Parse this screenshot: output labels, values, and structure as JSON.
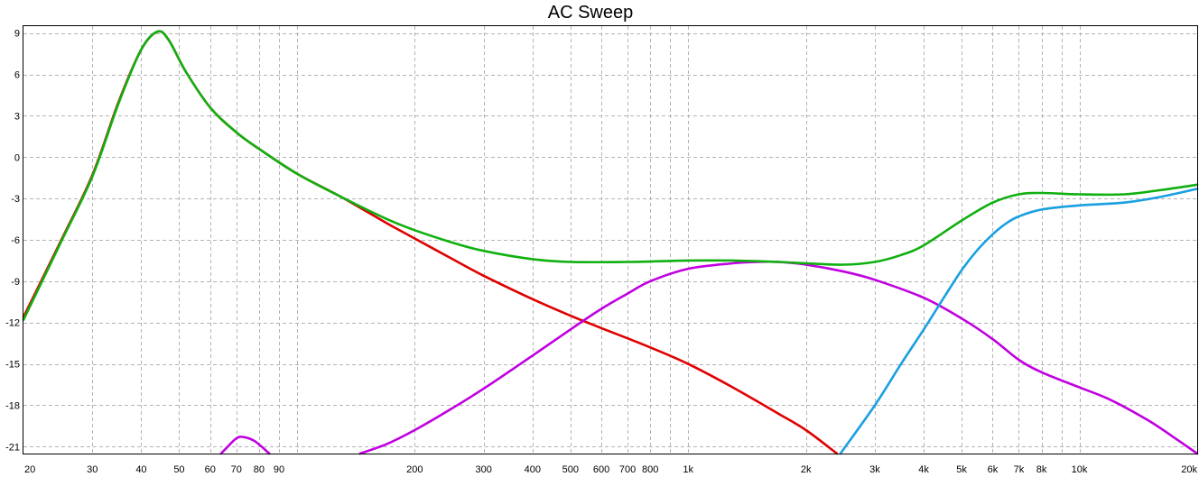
{
  "chart_data": {
    "type": "line",
    "title": "AC Sweep",
    "xlabel": "",
    "ylabel": "",
    "x_scale": "log",
    "xlim": [
      20,
      20000
    ],
    "ylim": [
      -21.5,
      9.5
    ],
    "grid": true,
    "legend": "none",
    "x_ticks": [
      {
        "value": 20,
        "label": "20"
      },
      {
        "value": 30,
        "label": "30"
      },
      {
        "value": 40,
        "label": "40"
      },
      {
        "value": 50,
        "label": "50"
      },
      {
        "value": 60,
        "label": "60"
      },
      {
        "value": 70,
        "label": "70"
      },
      {
        "value": 80,
        "label": "80"
      },
      {
        "value": 90,
        "label": "90"
      },
      {
        "value": 200,
        "label": "200"
      },
      {
        "value": 300,
        "label": "300"
      },
      {
        "value": 400,
        "label": "400"
      },
      {
        "value": 500,
        "label": "500"
      },
      {
        "value": 600,
        "label": "600"
      },
      {
        "value": 700,
        "label": "700"
      },
      {
        "value": 800,
        "label": "800"
      },
      {
        "value": 1000,
        "label": "1k"
      },
      {
        "value": 2000,
        "label": "2k"
      },
      {
        "value": 3000,
        "label": "3k"
      },
      {
        "value": 4000,
        "label": "4k"
      },
      {
        "value": 5000,
        "label": "5k"
      },
      {
        "value": 6000,
        "label": "6k"
      },
      {
        "value": 7000,
        "label": "7k"
      },
      {
        "value": 8000,
        "label": "8k"
      },
      {
        "value": 10000,
        "label": "10k"
      },
      {
        "value": 20000,
        "label": "20k"
      }
    ],
    "x_minor_grid": [
      100,
      900,
      9000
    ],
    "y_ticks": [
      {
        "value": 9,
        "label": "9"
      },
      {
        "value": 6,
        "label": "6"
      },
      {
        "value": 3,
        "label": "3"
      },
      {
        "value": 0,
        "label": "0"
      },
      {
        "value": -3,
        "label": "-3"
      },
      {
        "value": -6,
        "label": "-6"
      },
      {
        "value": -9,
        "label": "-9"
      },
      {
        "value": -12,
        "label": "-12"
      },
      {
        "value": -15,
        "label": "-15"
      },
      {
        "value": -18,
        "label": "-18"
      },
      {
        "value": -21,
        "label": "-21"
      }
    ],
    "series": [
      {
        "color": "#e00000",
        "points": [
          [
            20,
            -11.6
          ],
          [
            25,
            -6.0
          ],
          [
            30,
            -1.3
          ],
          [
            35,
            4.0
          ],
          [
            40,
            7.8
          ],
          [
            44,
            9.1
          ],
          [
            47,
            8.5
          ],
          [
            52,
            6.2
          ],
          [
            60,
            3.6
          ],
          [
            70,
            1.8
          ],
          [
            80,
            0.6
          ],
          [
            100,
            -1.2
          ],
          [
            130,
            -2.9
          ],
          [
            170,
            -4.8
          ],
          [
            200,
            -5.9
          ],
          [
            250,
            -7.4
          ],
          [
            300,
            -8.6
          ],
          [
            400,
            -10.3
          ],
          [
            500,
            -11.5
          ],
          [
            600,
            -12.4
          ],
          [
            800,
            -13.8
          ],
          [
            1000,
            -15.0
          ],
          [
            1300,
            -16.7
          ],
          [
            1700,
            -18.6
          ],
          [
            2000,
            -19.8
          ],
          [
            2400,
            -21.5
          ]
        ]
      },
      {
        "color": "#c000e0",
        "points": [
          [
            64,
            -21.5
          ],
          [
            66,
            -21.1
          ],
          [
            70,
            -20.4
          ],
          [
            73,
            -20.3
          ],
          [
            78,
            -20.6
          ],
          [
            85,
            -21.5
          ]
        ]
      },
      {
        "color": "#c000e0",
        "points": [
          [
            145,
            -21.5
          ],
          [
            170,
            -20.8
          ],
          [
            200,
            -19.8
          ],
          [
            250,
            -18.2
          ],
          [
            300,
            -16.8
          ],
          [
            400,
            -14.4
          ],
          [
            500,
            -12.5
          ],
          [
            600,
            -11.0
          ],
          [
            700,
            -9.9
          ],
          [
            800,
            -9.0
          ],
          [
            1000,
            -8.1
          ],
          [
            1300,
            -7.7
          ],
          [
            1500,
            -7.6
          ],
          [
            1700,
            -7.6
          ],
          [
            2000,
            -7.8
          ],
          [
            2500,
            -8.3
          ],
          [
            3000,
            -8.9
          ],
          [
            4000,
            -10.2
          ],
          [
            5000,
            -11.7
          ],
          [
            6000,
            -13.2
          ],
          [
            7000,
            -14.7
          ],
          [
            8000,
            -15.6
          ],
          [
            10000,
            -16.7
          ],
          [
            12000,
            -17.6
          ],
          [
            15000,
            -19.1
          ],
          [
            18000,
            -20.6
          ],
          [
            20000,
            -21.5
          ]
        ]
      },
      {
        "color": "#1aa0e0",
        "points": [
          [
            2450,
            -21.5
          ],
          [
            3000,
            -18.0
          ],
          [
            3500,
            -15.0
          ],
          [
            4000,
            -12.5
          ],
          [
            4500,
            -10.2
          ],
          [
            5000,
            -8.2
          ],
          [
            5500,
            -6.7
          ],
          [
            6000,
            -5.6
          ],
          [
            6500,
            -4.8
          ],
          [
            7000,
            -4.3
          ],
          [
            8000,
            -3.8
          ],
          [
            10000,
            -3.5
          ],
          [
            13000,
            -3.3
          ],
          [
            16000,
            -2.9
          ],
          [
            20000,
            -2.3
          ]
        ]
      },
      {
        "color": "#10b010",
        "points": [
          [
            20,
            -11.8
          ],
          [
            25,
            -6.1
          ],
          [
            30,
            -1.4
          ],
          [
            35,
            3.9
          ],
          [
            40,
            7.8
          ],
          [
            44,
            9.1
          ],
          [
            47,
            8.5
          ],
          [
            52,
            6.2
          ],
          [
            60,
            3.6
          ],
          [
            70,
            1.8
          ],
          [
            80,
            0.6
          ],
          [
            100,
            -1.2
          ],
          [
            130,
            -2.9
          ],
          [
            170,
            -4.5
          ],
          [
            200,
            -5.3
          ],
          [
            250,
            -6.2
          ],
          [
            300,
            -6.8
          ],
          [
            400,
            -7.4
          ],
          [
            500,
            -7.6
          ],
          [
            700,
            -7.6
          ],
          [
            1000,
            -7.5
          ],
          [
            1300,
            -7.5
          ],
          [
            1700,
            -7.6
          ],
          [
            2000,
            -7.7
          ],
          [
            2500,
            -7.8
          ],
          [
            3000,
            -7.6
          ],
          [
            3500,
            -7.1
          ],
          [
            4000,
            -6.4
          ],
          [
            5000,
            -4.6
          ],
          [
            6000,
            -3.3
          ],
          [
            7000,
            -2.7
          ],
          [
            8000,
            -2.6
          ],
          [
            10000,
            -2.7
          ],
          [
            13000,
            -2.7
          ],
          [
            16000,
            -2.4
          ],
          [
            20000,
            -2.0
          ]
        ]
      }
    ]
  }
}
